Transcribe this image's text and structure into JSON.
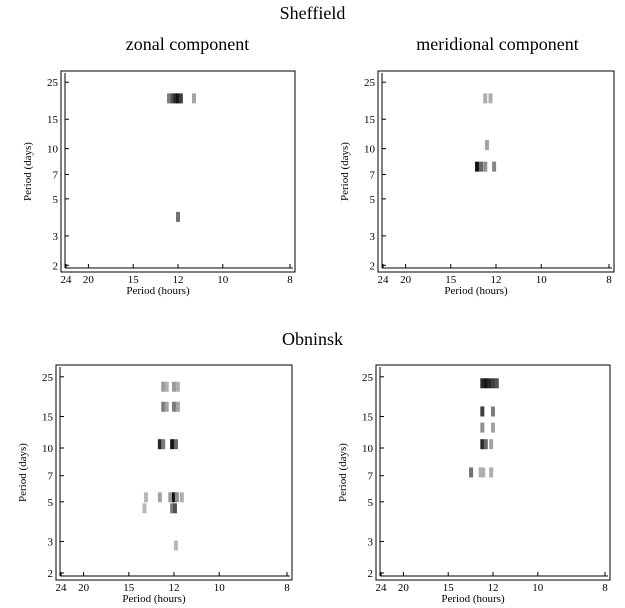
{
  "headings": {
    "sheffield": "Sheffield",
    "obninsk": "Obninsk",
    "zonal": "zonal component",
    "meridional": "meridional component"
  },
  "chart_data": [
    {
      "type": "heatmap",
      "station": "Sheffield",
      "component": "zonal component",
      "xlabel": "Period (hours)",
      "ylabel": "Period (days)",
      "xticks": [
        24,
        20,
        15,
        12,
        10,
        8
      ],
      "yticks": [
        2,
        3,
        5,
        7,
        10,
        15,
        25
      ],
      "xscale": "reciprocal",
      "yscale": "log",
      "xlim": [
        24,
        8
      ],
      "ylim": [
        1.9,
        28
      ],
      "cells": [
        {
          "x": 12.5,
          "y": 20,
          "shade": 0.5
        },
        {
          "x": 12.3,
          "y": 20,
          "shade": 0.7
        },
        {
          "x": 12.15,
          "y": 20,
          "shade": 0.9
        },
        {
          "x": 12.0,
          "y": 20,
          "shade": 1.0
        },
        {
          "x": 11.85,
          "y": 20,
          "shade": 0.8
        },
        {
          "x": 11.2,
          "y": 20,
          "shade": 0.3
        },
        {
          "x": 12.0,
          "y": 3.9,
          "shade": 0.55
        }
      ]
    },
    {
      "type": "heatmap",
      "station": "Sheffield",
      "component": "meridional component",
      "xlabel": "Period (hours)",
      "ylabel": "Period (days)",
      "xticks": [
        24,
        20,
        15,
        12,
        10,
        8
      ],
      "yticks": [
        2,
        3,
        5,
        7,
        10,
        15,
        25
      ],
      "xscale": "reciprocal",
      "yscale": "log",
      "xlim": [
        24,
        8
      ],
      "ylim": [
        1.9,
        28
      ],
      "cells": [
        {
          "x": 12.6,
          "y": 20,
          "shade": 0.25
        },
        {
          "x": 12.3,
          "y": 20,
          "shade": 0.25
        },
        {
          "x": 12.5,
          "y": 10.5,
          "shade": 0.3
        },
        {
          "x": 13.1,
          "y": 7.8,
          "shade": 1.0
        },
        {
          "x": 12.85,
          "y": 7.8,
          "shade": 0.6
        },
        {
          "x": 12.6,
          "y": 7.8,
          "shade": 0.4
        },
        {
          "x": 12.1,
          "y": 7.8,
          "shade": 0.45
        }
      ]
    },
    {
      "type": "heatmap",
      "station": "Obninsk",
      "component": "zonal component",
      "xlabel": "Period (hours)",
      "ylabel": "Period (days)",
      "xticks": [
        24,
        20,
        15,
        12,
        10,
        8
      ],
      "yticks": [
        2,
        3,
        5,
        7,
        10,
        15,
        25
      ],
      "xscale": "reciprocal",
      "yscale": "log",
      "xlim": [
        24,
        8
      ],
      "ylim": [
        1.9,
        28
      ],
      "cells": [
        {
          "x": 12.6,
          "y": 22,
          "shade": 0.35
        },
        {
          "x": 12.4,
          "y": 22,
          "shade": 0.25
        },
        {
          "x": 12.0,
          "y": 22,
          "shade": 0.35
        },
        {
          "x": 11.8,
          "y": 22,
          "shade": 0.25
        },
        {
          "x": 12.6,
          "y": 17,
          "shade": 0.5
        },
        {
          "x": 12.4,
          "y": 17,
          "shade": 0.3
        },
        {
          "x": 12.0,
          "y": 17,
          "shade": 0.5
        },
        {
          "x": 11.8,
          "y": 17,
          "shade": 0.3
        },
        {
          "x": 12.8,
          "y": 10.5,
          "shade": 0.9
        },
        {
          "x": 12.6,
          "y": 10.5,
          "shade": 0.5
        },
        {
          "x": 12.1,
          "y": 10.5,
          "shade": 1.0
        },
        {
          "x": 11.9,
          "y": 10.5,
          "shade": 0.6
        },
        {
          "x": 13.7,
          "y": 5.3,
          "shade": 0.2
        },
        {
          "x": 12.8,
          "y": 5.3,
          "shade": 0.3
        },
        {
          "x": 12.2,
          "y": 5.3,
          "shade": 0.35
        },
        {
          "x": 12.0,
          "y": 5.3,
          "shade": 1.0
        },
        {
          "x": 11.85,
          "y": 5.3,
          "shade": 0.4
        },
        {
          "x": 11.6,
          "y": 5.3,
          "shade": 0.25
        },
        {
          "x": 13.8,
          "y": 4.6,
          "shade": 0.2
        },
        {
          "x": 12.1,
          "y": 4.6,
          "shade": 0.5
        },
        {
          "x": 11.95,
          "y": 4.6,
          "shade": 0.7
        },
        {
          "x": 11.9,
          "y": 2.85,
          "shade": 0.2
        }
      ]
    },
    {
      "type": "heatmap",
      "station": "Obninsk",
      "component": "meridional component",
      "xlabel": "Period (hours)",
      "ylabel": "Period (days)",
      "xticks": [
        24,
        20,
        15,
        12,
        10,
        8
      ],
      "yticks": [
        2,
        3,
        5,
        7,
        10,
        15,
        25
      ],
      "xscale": "reciprocal",
      "yscale": "log",
      "xlim": [
        24,
        8
      ],
      "ylim": [
        1.9,
        28
      ],
      "cells": [
        {
          "x": 12.6,
          "y": 23,
          "shade": 0.9
        },
        {
          "x": 12.4,
          "y": 23,
          "shade": 1.0
        },
        {
          "x": 12.2,
          "y": 23,
          "shade": 0.9
        },
        {
          "x": 12.0,
          "y": 23,
          "shade": 0.8
        },
        {
          "x": 11.8,
          "y": 23,
          "shade": 0.7
        },
        {
          "x": 12.6,
          "y": 16,
          "shade": 0.8
        },
        {
          "x": 12.0,
          "y": 16,
          "shade": 0.5
        },
        {
          "x": 12.6,
          "y": 13,
          "shade": 0.4
        },
        {
          "x": 12.0,
          "y": 13,
          "shade": 0.3
        },
        {
          "x": 12.6,
          "y": 10.5,
          "shade": 0.9
        },
        {
          "x": 12.4,
          "y": 10.5,
          "shade": 0.6
        },
        {
          "x": 12.1,
          "y": 10.5,
          "shade": 0.3
        },
        {
          "x": 13.3,
          "y": 7.3,
          "shade": 0.55
        },
        {
          "x": 12.7,
          "y": 7.3,
          "shade": 0.25
        },
        {
          "x": 12.55,
          "y": 7.3,
          "shade": 0.25
        },
        {
          "x": 12.1,
          "y": 7.3,
          "shade": 0.25
        }
      ]
    }
  ]
}
